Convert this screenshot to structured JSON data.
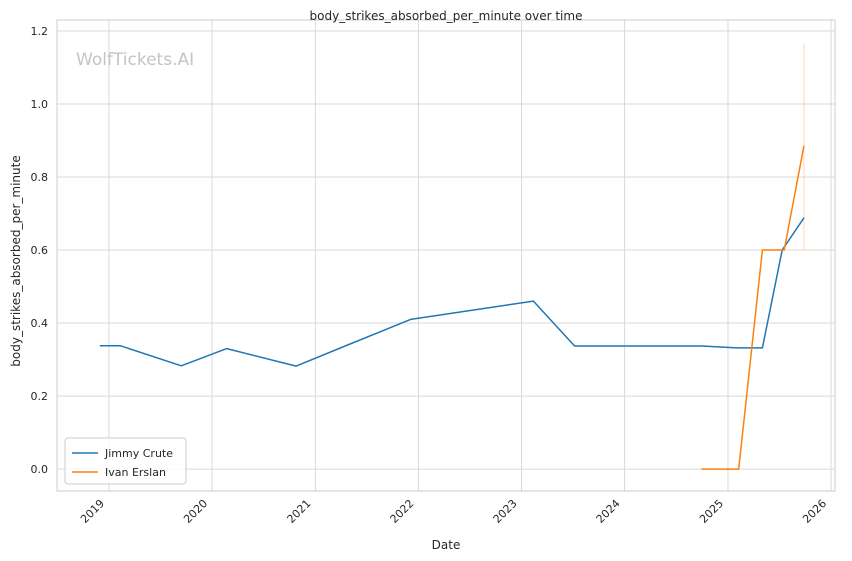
{
  "chart_data": {
    "type": "line",
    "title": "body_strikes_absorbed_per_minute over time",
    "xlabel": "Date",
    "ylabel": "body_strikes_absorbed_per_minute",
    "watermark": "WolfTickets.AI",
    "x_ticks": [
      "2019",
      "2020",
      "2021",
      "2022",
      "2023",
      "2024",
      "2025",
      "2026"
    ],
    "y_ticks": [
      "0.0",
      "0.2",
      "0.4",
      "0.6",
      "0.8",
      "1.0",
      "1.2"
    ],
    "xlim": [
      "2018-07-01",
      "2026-01-15"
    ],
    "ylim": [
      -0.06,
      1.23
    ],
    "grid": true,
    "legend_position": "lower-left",
    "series": [
      {
        "name": "Jimmy Crute",
        "color": "#1f77b4",
        "points": [
          {
            "x": "2018-12-01",
            "y": 0.338
          },
          {
            "x": "2019-02-10",
            "y": 0.338
          },
          {
            "x": "2019-09-14",
            "y": 0.283
          },
          {
            "x": "2020-02-22",
            "y": 0.33
          },
          {
            "x": "2020-10-25",
            "y": 0.282
          },
          {
            "x": "2021-04-25",
            "y": 0.34
          },
          {
            "x": "2021-12-04",
            "y": 0.41
          },
          {
            "x": "2023-02-12",
            "y": 0.46
          },
          {
            "x": "2023-07-08",
            "y": 0.337
          },
          {
            "x": "2024-10-01",
            "y": 0.337
          },
          {
            "x": "2025-02-01",
            "y": 0.332
          },
          {
            "x": "2025-05-03",
            "y": 0.332
          },
          {
            "x": "2025-07-12",
            "y": 0.6
          },
          {
            "x": "2025-09-27",
            "y": 0.688
          }
        ]
      },
      {
        "name": "Ivan Erslan",
        "color": "#ff7f0e",
        "points": [
          {
            "x": "2024-10-01",
            "y": 0.0
          },
          {
            "x": "2025-02-08",
            "y": 0.0
          },
          {
            "x": "2025-05-03",
            "y": 0.6
          },
          {
            "x": "2025-07-19",
            "y": 0.6
          },
          {
            "x": "2025-09-27",
            "y": 0.885
          }
        ],
        "band": {
          "x": "2025-09-27",
          "low": 0.6,
          "high": 1.165
        }
      }
    ]
  }
}
